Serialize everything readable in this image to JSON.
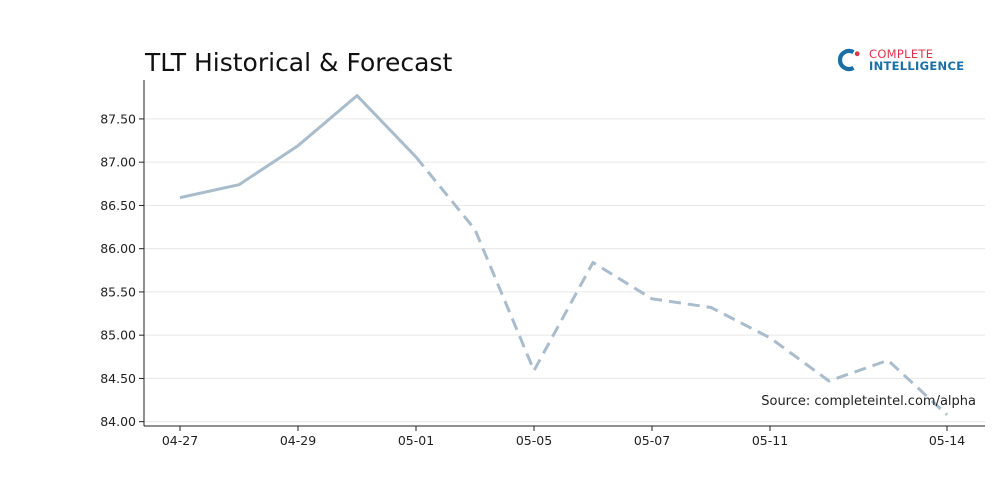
{
  "brand": {
    "line1": "COMPLETE",
    "line2": "INTELLIGENCE",
    "colors": {
      "red": "#e0344a",
      "blue": "#1a6fa6"
    }
  },
  "source_note": "Source: completeintel.com/alpha",
  "chart_data": {
    "type": "line",
    "title": "TLT Historical & Forecast",
    "xlabel": "",
    "ylabel": "",
    "x_tick_labels": [
      "04-27",
      "04-29",
      "05-01",
      "05-05",
      "05-07",
      "05-11",
      "05-14"
    ],
    "y_ticks": [
      "84.00",
      "84.50",
      "85.00",
      "85.50",
      "86.00",
      "86.50",
      "87.00",
      "87.50"
    ],
    "ylim": [
      83.95,
      87.95
    ],
    "grid": "horizontal",
    "line_color": "#a9bccc",
    "series": [
      {
        "style": "solid",
        "points": [
          [
            0,
            86.59
          ],
          [
            1,
            86.74
          ],
          [
            2,
            87.19
          ],
          [
            3,
            87.77
          ],
          [
            4,
            87.06
          ]
        ]
      },
      {
        "style": "dashed",
        "points": [
          [
            4,
            87.06
          ],
          [
            5,
            86.22
          ],
          [
            6,
            84.59
          ],
          [
            7,
            85.84
          ],
          [
            8,
            85.42
          ],
          [
            9,
            85.32
          ],
          [
            10,
            84.97
          ],
          [
            11,
            84.47
          ],
          [
            12,
            84.71
          ],
          [
            13,
            84.08
          ]
        ]
      }
    ],
    "x_tick_positions": [
      0,
      2,
      4,
      6,
      8,
      10,
      13
    ]
  }
}
